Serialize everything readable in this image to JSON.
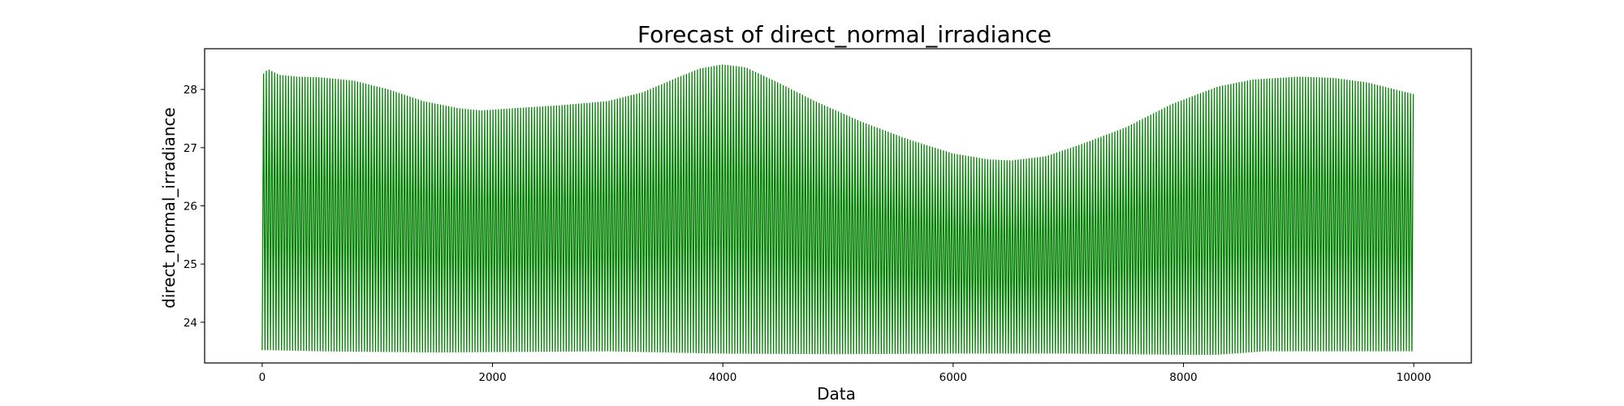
{
  "chart_data": {
    "type": "line",
    "title": "Forecast of direct_normal_irradiance",
    "xlabel": "Data",
    "ylabel": "direct_normal_irradiance",
    "xlim": [
      -500,
      10500
    ],
    "ylim": [
      23.3,
      28.7
    ],
    "x_ticks": [
      0,
      2000,
      4000,
      6000,
      8000,
      10000
    ],
    "x_tick_labels": [
      "0",
      "2000",
      "4000",
      "6000",
      "8000",
      "10000"
    ],
    "y_ticks": [
      24,
      25,
      26,
      27,
      28
    ],
    "y_tick_labels": [
      "24",
      "25",
      "26",
      "27",
      "28"
    ],
    "grid": false,
    "series": [
      {
        "color": "#008000",
        "description_of_shape": "densely oscillating series between a lower bound near 23.5 and an upper envelope",
        "upper_envelope": {
          "x": [
            0,
            50,
            150,
            300,
            500,
            800,
            1100,
            1400,
            1700,
            1900,
            2200,
            2600,
            3000,
            3300,
            3600,
            3800,
            4000,
            4200,
            4500,
            4800,
            5200,
            5600,
            6000,
            6300,
            6500,
            6800,
            7100,
            7500,
            7900,
            8300,
            8600,
            9000,
            9300,
            9600,
            10000
          ],
          "y": [
            28.25,
            28.35,
            28.25,
            28.22,
            28.21,
            28.15,
            28.0,
            27.8,
            27.68,
            27.64,
            27.68,
            27.73,
            27.8,
            27.95,
            28.2,
            28.36,
            28.43,
            28.38,
            28.1,
            27.8,
            27.45,
            27.15,
            26.9,
            26.8,
            26.78,
            26.85,
            27.05,
            27.35,
            27.75,
            28.05,
            28.17,
            28.22,
            28.2,
            28.12,
            27.92
          ]
        },
        "lower_envelope": {
          "x": [
            0,
            50,
            500,
            1500,
            3000,
            4000,
            5000,
            6000,
            7000,
            8000,
            8300,
            8700,
            9500,
            10000
          ],
          "y": [
            23.52,
            23.52,
            23.5,
            23.48,
            23.5,
            23.46,
            23.45,
            23.46,
            23.46,
            23.44,
            23.44,
            23.5,
            23.5,
            23.5
          ]
        }
      }
    ]
  }
}
